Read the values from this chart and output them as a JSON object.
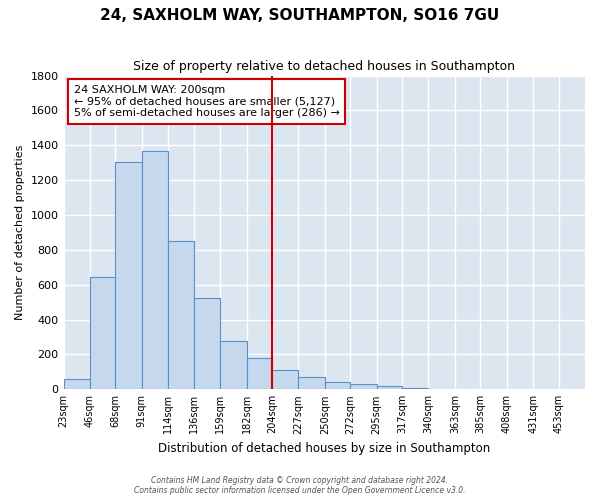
{
  "title": "24, SAXHOLM WAY, SOUTHAMPTON, SO16 7GU",
  "subtitle": "Size of property relative to detached houses in Southampton",
  "xlabel": "Distribution of detached houses by size in Southampton",
  "ylabel": "Number of detached properties",
  "bar_color": "#c5d8ee",
  "bar_edge_color": "#5b8fc9",
  "background_color": "#dce6f1",
  "grid_color": "#ffffff",
  "fig_bg_color": "#ffffff",
  "vline_x": 204,
  "vline_color": "#cc0000",
  "annotation_line1": "24 SAXHOLM WAY: 200sqm",
  "annotation_line2": "← 95% of detached houses are smaller (5,127)",
  "annotation_line3": "5% of semi-detached houses are larger (286) →",
  "annotation_box_color": "#cc0000",
  "annotation_box_bg": "#ffffff",
  "bin_edges": [
    23,
    46,
    68,
    91,
    114,
    136,
    159,
    182,
    204,
    227,
    250,
    272,
    295,
    317,
    340,
    363,
    385,
    408,
    431,
    453,
    476
  ],
  "bar_heights": [
    58,
    645,
    1305,
    1370,
    850,
    525,
    280,
    178,
    108,
    70,
    40,
    28,
    20,
    10,
    0,
    0,
    0,
    0,
    0,
    0
  ],
  "ylim": [
    0,
    1800
  ],
  "yticks": [
    0,
    200,
    400,
    600,
    800,
    1000,
    1200,
    1400,
    1600,
    1800
  ],
  "footer_line1": "Contains HM Land Registry data © Crown copyright and database right 2024.",
  "footer_line2": "Contains public sector information licensed under the Open Government Licence v3.0."
}
